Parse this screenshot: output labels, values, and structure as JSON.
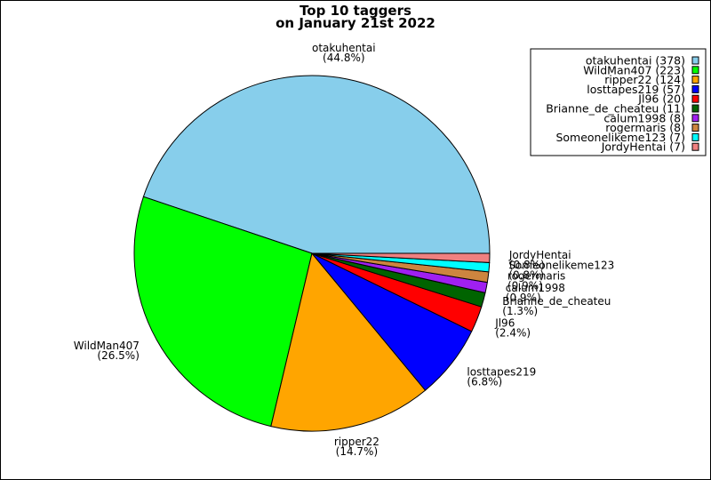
{
  "chart_data": {
    "type": "pie",
    "title": [
      "Top 10 taggers",
      "on January 21st 2022"
    ],
    "legend_position": "top-right",
    "slices": [
      {
        "label": "otakuhentai",
        "value": 378,
        "percent": "(44.8%)",
        "legend": "otakuhentai (378)",
        "color": "#87ceeb"
      },
      {
        "label": "WildMan407",
        "value": 223,
        "percent": "(26.5%)",
        "legend": "WildMan407 (223)",
        "color": "#00ff00"
      },
      {
        "label": "ripper22",
        "value": 124,
        "percent": "(14.7%)",
        "legend": "ripper22 (124)",
        "color": "#ffa500"
      },
      {
        "label": "losttapes219",
        "value": 57,
        "percent": "(6.8%)",
        "legend": "losttapes219 (57)",
        "color": "#0000ff"
      },
      {
        "label": "Jl96",
        "value": 20,
        "percent": "(2.4%)",
        "legend": "Jl96 (20)",
        "color": "#ff0000"
      },
      {
        "label": "Brianne_de_cheateu",
        "value": 11,
        "percent": "(1.3%)",
        "legend": "Brianne_de_cheateu (11)",
        "color": "#006400"
      },
      {
        "label": "calum1998",
        "value": 8,
        "percent": "(0.9%)",
        "legend": "calum1998 (8)",
        "color": "#a020f0"
      },
      {
        "label": "rogermaris",
        "value": 8,
        "percent": "(0.9%)",
        "legend": "rogermaris (8)",
        "color": "#cd853f"
      },
      {
        "label": "Someonelikeme123",
        "value": 7,
        "percent": "(0.8%)",
        "legend": "Someonelikeme123 (7)",
        "color": "#00ffff"
      },
      {
        "label": "JordyHentai",
        "value": 7,
        "percent": "(0.8%)",
        "legend": "JordyHentai (7)",
        "color": "#f08080"
      }
    ]
  }
}
